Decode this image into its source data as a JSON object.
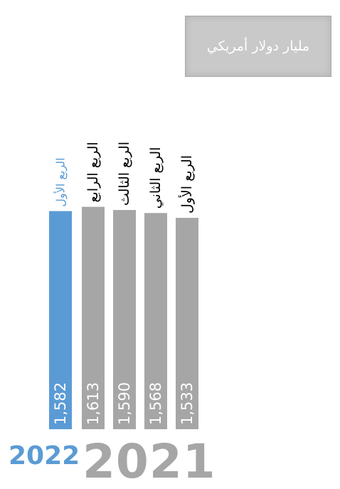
{
  "unit_label": "مليار دولار أمريكي",
  "colors": {
    "highlight": "#5b9bd5",
    "default": "#a6a6a6"
  },
  "chart_data": {
    "type": "bar",
    "categories": [
      "الربع الأول",
      "الربع الرابع",
      "الربع الثالث",
      "الربع الثاني",
      "الربع الأول"
    ],
    "groups": [
      "2022",
      "2021",
      "2021",
      "2021",
      "2021"
    ],
    "values": [
      1582,
      1613,
      1590,
      1568,
      1533
    ],
    "value_labels": [
      "1,582",
      "1,613",
      "1,590",
      "1,568",
      "1,533"
    ],
    "highlight_index": 0,
    "year_labels": [
      "2022",
      "2021"
    ]
  }
}
